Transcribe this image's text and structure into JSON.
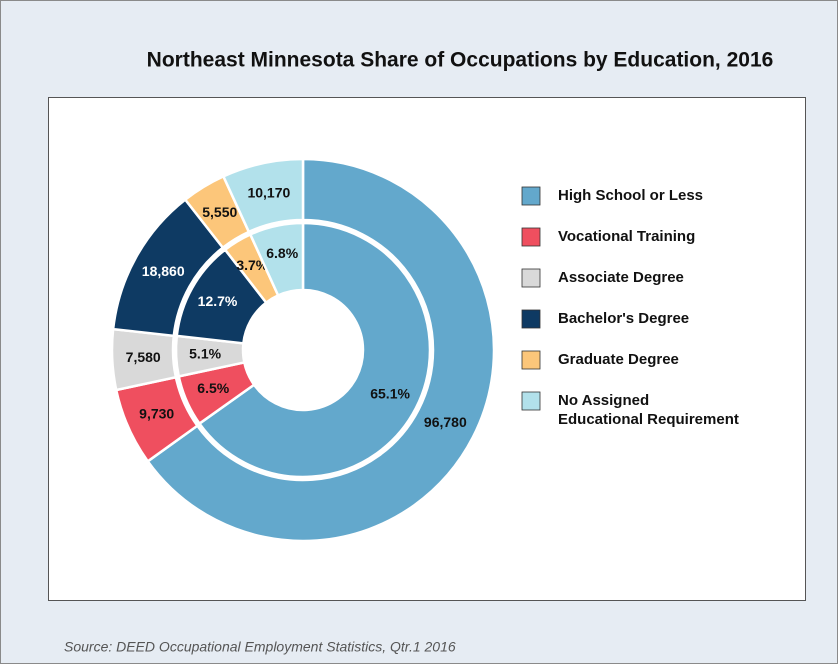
{
  "chart_data": {
    "type": "double-donut",
    "title": "Northeast Minnesota Share of Occupations by Education, 2016",
    "source": "Source: DEED Occupational Employment Statistics, Qtr.1 2016",
    "categories": [
      "High School or Less",
      "Vocational Training",
      "Associate Degree",
      "Bachelor's Degree",
      "Graduate Degree",
      "No Assigned Educational Requirement"
    ],
    "colors": [
      "#63a8cc",
      "#ef4f5f",
      "#d9d9d9",
      "#0e3a63",
      "#fcc67a",
      "#b2e1eb"
    ],
    "series": [
      {
        "values": [
          96780,
          9730,
          7580,
          18860,
          5550,
          10170
        ],
        "value_labels": [
          "96,780",
          "9,730",
          "7,580",
          "18,860",
          "5,550",
          "10,170"
        ]
      },
      {
        "values": [
          65.1,
          6.5,
          5.1,
          12.7,
          3.7,
          6.8
        ],
        "value_labels": [
          "65.1%",
          "6.5%",
          "5.1%",
          "12.7%",
          "3.7%",
          "6.8%"
        ]
      }
    ],
    "legend": "right"
  }
}
